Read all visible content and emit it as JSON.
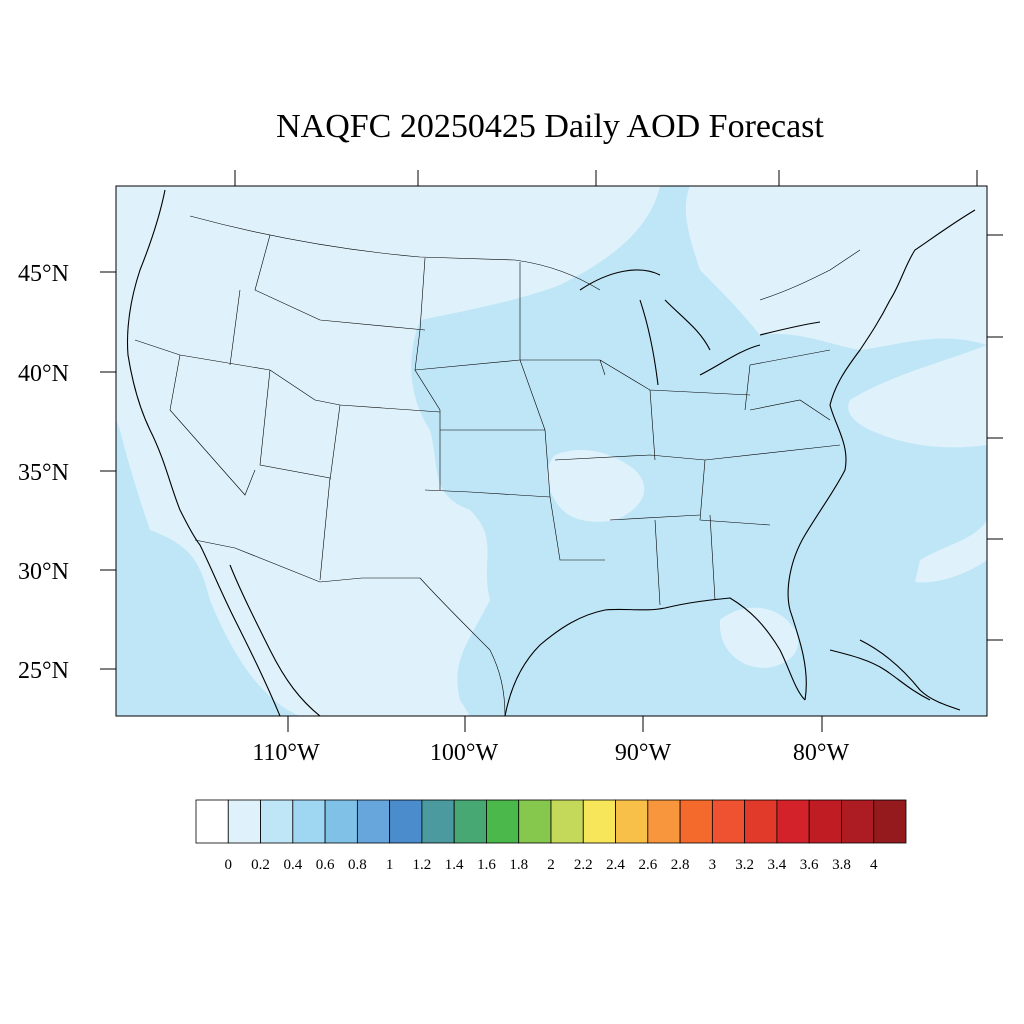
{
  "title": "NAQFC 20250425 Daily AOD Forecast",
  "latitude_labels": [
    "45°N",
    "40°N",
    "35°N",
    "30°N",
    "25°N"
  ],
  "longitude_labels": [
    "110°W",
    "100°W",
    "90°W",
    "80°W"
  ],
  "colorbar": {
    "ticks": [
      "0",
      "0.2",
      "0.4",
      "0.6",
      "0.8",
      "1",
      "1.2",
      "1.4",
      "1.6",
      "1.8",
      "2",
      "2.2",
      "2.4",
      "2.6",
      "2.8",
      "3",
      "3.2",
      "3.4",
      "3.6",
      "3.8",
      "4"
    ],
    "colors": [
      "#ffffff",
      "#dff2fb",
      "#bfe6f7",
      "#9fd6f2",
      "#80c1e7",
      "#66a6dc",
      "#4a8ccc",
      "#4a9aa0",
      "#48a874",
      "#4ab84a",
      "#86c74e",
      "#c4d85a",
      "#f7e65a",
      "#f8c048",
      "#f7963c",
      "#f46a2c",
      "#ee5230",
      "#e23a2a",
      "#d4222a",
      "#c01c24",
      "#ad1c22",
      "#941a1e"
    ]
  },
  "field_colors": {
    "low": "#dff2fb",
    "mid": "#bfe6f7"
  }
}
